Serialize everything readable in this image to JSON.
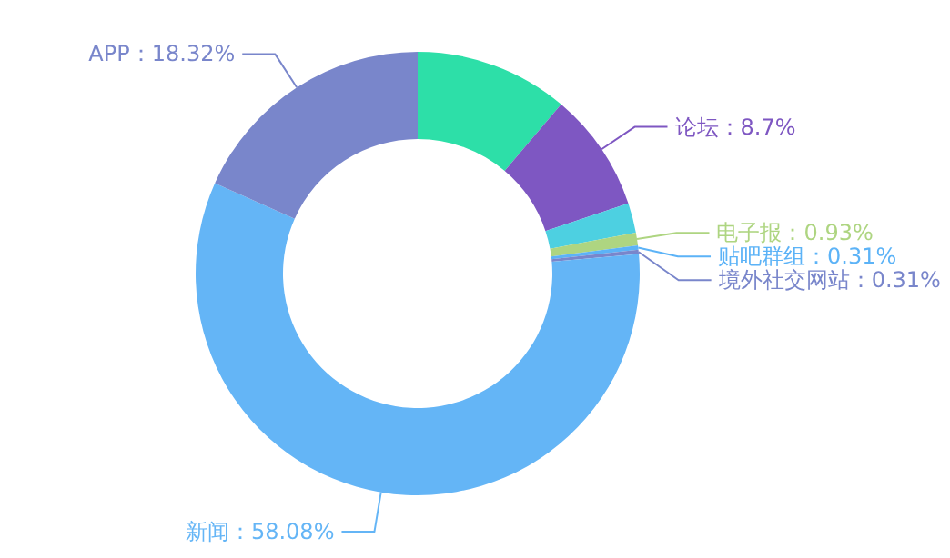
{
  "chart_data": {
    "type": "donut",
    "categories": [
      null,
      "论坛",
      null,
      "电子报",
      "贴吧群组",
      "境外社交网站",
      "新闻",
      "APP"
    ],
    "values": [
      11.18,
      8.7,
      2.17,
      0.93,
      0.31,
      0.31,
      58.08,
      18.32
    ],
    "colors": [
      "#2ddfa8",
      "#7e57c2",
      "#4dd0e1",
      "#aed581",
      "#5cb3f7",
      "#7986cb",
      "#64b5f6",
      "#7986cb"
    ],
    "value_labels": [
      null,
      "8.7%",
      null,
      "0.93%",
      "0.31%",
      "0.31%",
      "58.08%",
      "18.32%"
    ]
  }
}
